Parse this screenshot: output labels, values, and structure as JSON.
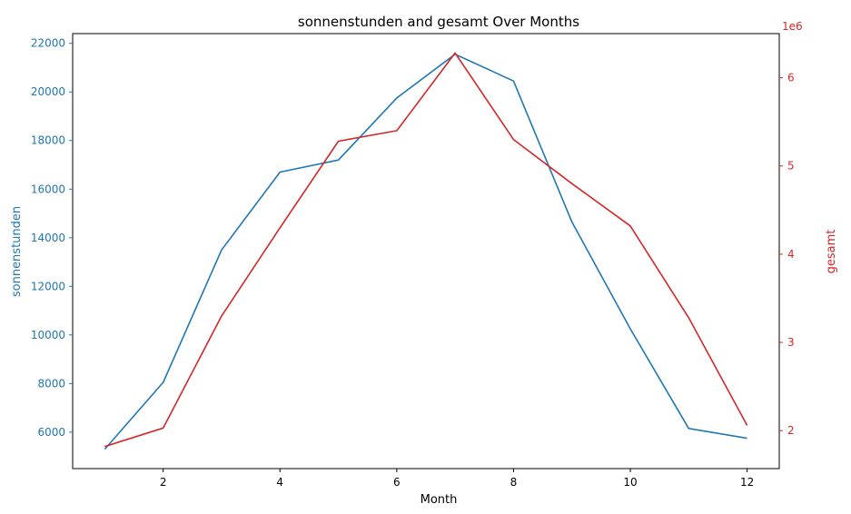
{
  "chart_data": {
    "type": "line",
    "title": "sonnenstunden and gesamt Over Months",
    "xlabel": "Month",
    "ylabel_left": "sonnenstunden",
    "ylabel_right": "gesamt",
    "right_axis_multiplier": "1e6",
    "x": [
      1,
      2,
      3,
      4,
      5,
      6,
      7,
      8,
      9,
      10,
      11,
      12
    ],
    "xlim": [
      0.45,
      12.55
    ],
    "x_ticks": [
      2,
      4,
      6,
      8,
      10,
      12
    ],
    "ylim_left": [
      4500,
      22400
    ],
    "y_ticks_left": [
      6000,
      8000,
      10000,
      12000,
      14000,
      16000,
      18000,
      20000,
      22000
    ],
    "ylim_right": [
      1.57,
      6.5
    ],
    "y_ticks_right": [
      2,
      3,
      4,
      5,
      6
    ],
    "grid": false,
    "series": [
      {
        "name": "sonnenstunden",
        "axis": "left",
        "color": "#1f77b4",
        "values": [
          5300,
          8050,
          13500,
          16700,
          17200,
          19750,
          21550,
          20450,
          14650,
          10250,
          6150,
          5750
        ]
      },
      {
        "name": "gesamt",
        "axis": "right",
        "color": "#d62728",
        "values": [
          1.82,
          2.03,
          3.3,
          4.3,
          5.28,
          5.4,
          6.28,
          5.3,
          4.8,
          4.32,
          3.28,
          2.06
        ]
      }
    ]
  }
}
